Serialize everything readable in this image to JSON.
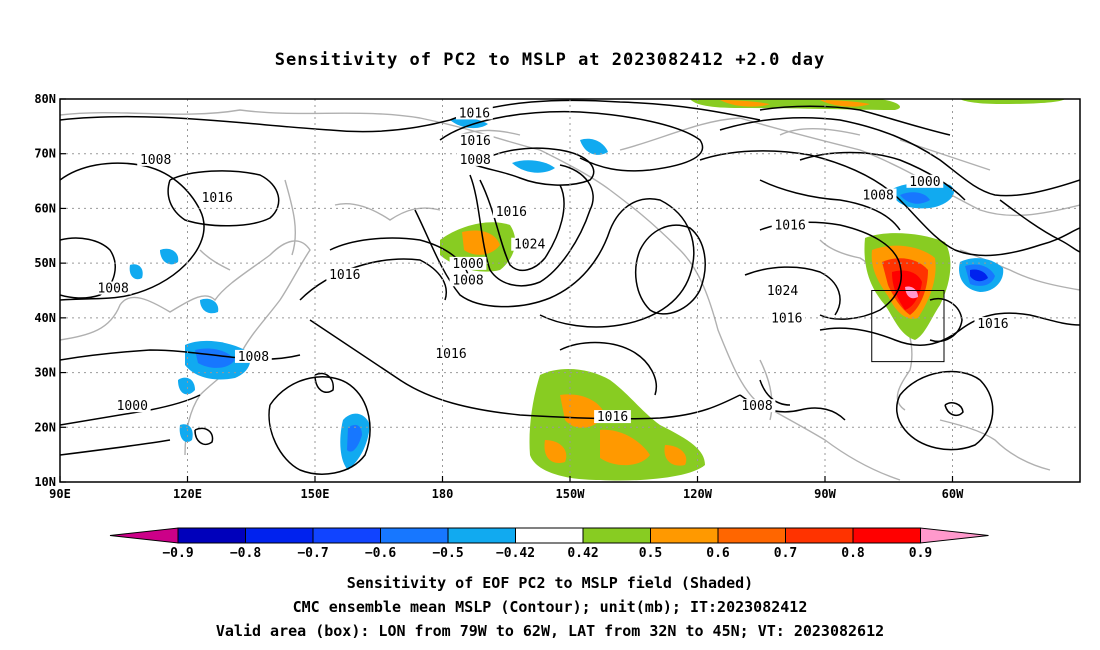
{
  "title": "Sensitivity of PC2 to MSLP at 2023082412 +2.0 day",
  "axes": {
    "lon_labels": [
      "90E",
      "120E",
      "150E",
      "180",
      "150W",
      "120W",
      "90W",
      "60W"
    ],
    "lat_labels": [
      "80N",
      "70N",
      "60N",
      "50N",
      "40N",
      "30N",
      "20N",
      "10N"
    ]
  },
  "contour_labels": [
    {
      "text": "1016",
      "lon": -172.5,
      "lat": 77
    },
    {
      "text": "1016",
      "lon": -172.3,
      "lat": 72
    },
    {
      "text": "1008",
      "lon": -172.3,
      "lat": 68.5
    },
    {
      "text": "1008",
      "lon": 112.5,
      "lat": 68.5
    },
    {
      "text": "1016",
      "lon": 127,
      "lat": 61.5
    },
    {
      "text": "1016",
      "lon": -163.8,
      "lat": 59
    },
    {
      "text": "1024",
      "lon": -159.5,
      "lat": 53
    },
    {
      "text": "1000",
      "lon": -174,
      "lat": 49.5
    },
    {
      "text": "1008",
      "lon": -174,
      "lat": 46.5
    },
    {
      "text": "1016",
      "lon": 157,
      "lat": 47.5
    },
    {
      "text": "1008",
      "lon": 102.5,
      "lat": 45
    },
    {
      "text": "1016",
      "lon": -98.2,
      "lat": 56.5
    },
    {
      "text": "1024",
      "lon": -100,
      "lat": 44.5
    },
    {
      "text": "1016",
      "lon": -99,
      "lat": 39.5
    },
    {
      "text": "1008",
      "lon": -77.5,
      "lat": 62
    },
    {
      "text": "1000",
      "lon": -66.5,
      "lat": 64.5
    },
    {
      "text": "1016",
      "lon": -50.5,
      "lat": 38.5
    },
    {
      "text": "1008",
      "lon": 135.5,
      "lat": 32.5
    },
    {
      "text": "1016",
      "lon": -178,
      "lat": 33
    },
    {
      "text": "1000",
      "lon": 107,
      "lat": 23.5
    },
    {
      "text": "1016",
      "lon": -140,
      "lat": 21.5
    },
    {
      "text": "1008",
      "lon": -106,
      "lat": 23.5
    }
  ],
  "valid_box": {
    "lon_min": -79,
    "lon_max": -62,
    "lat_min": 32,
    "lat_max": 45
  },
  "colorbar": {
    "labels": [
      "-0.9",
      "-0.8",
      "-0.7",
      "-0.6",
      "-0.5",
      "-0.42",
      "0.42",
      "0.5",
      "0.6",
      "0.7",
      "0.8",
      "0.9"
    ],
    "colors": [
      "#0000bb",
      "#0022ee",
      "#1144ff",
      "#1777ff",
      "#11aaf0",
      "#ffffff",
      "#88cc22",
      "#ff9900",
      "#ff6600",
      "#ff3300",
      "#ff0000"
    ],
    "low_end_color": "#cc0088",
    "high_end_color": "#ff99cc"
  },
  "captions": {
    "line1": "Sensitivity of EOF PC2 to MSLP field (Shaded)",
    "line2": "CMC ensemble mean MSLP (Contour); unit(mb); IT:2023082412",
    "line3": "Valid area (box): LON from 79W to 62W, LAT from 32N to 45N; VT: 2023082612"
  }
}
